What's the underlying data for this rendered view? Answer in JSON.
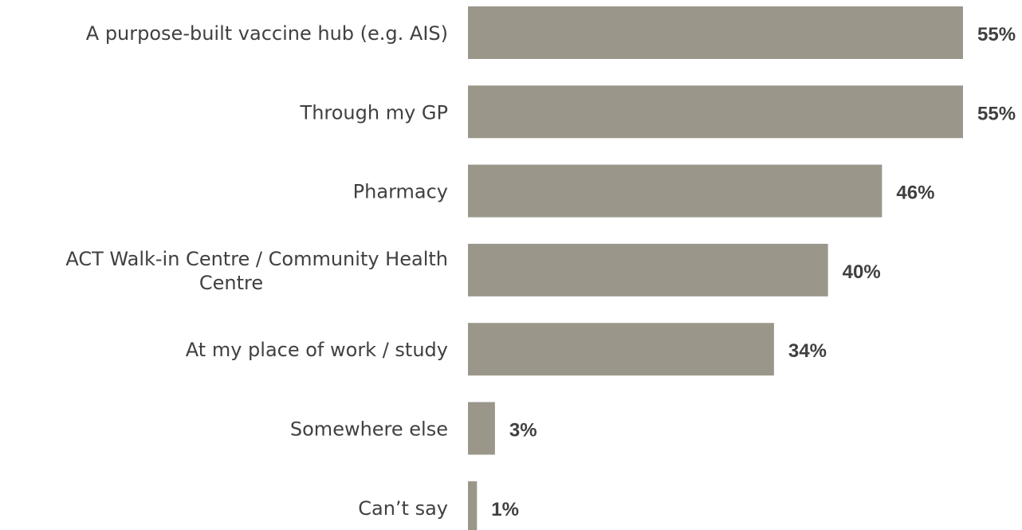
{
  "chart_data": {
    "type": "bar",
    "orientation": "horizontal",
    "title": "",
    "xlabel": "",
    "ylabel": "",
    "categories": [
      [
        "A purpose-built vaccine hub (e.g. AIS)"
      ],
      [
        "Through my GP"
      ],
      [
        "Pharmacy"
      ],
      [
        "ACT Walk-in Centre / Community Health",
        "Centre"
      ],
      [
        "At my place of work / study"
      ],
      [
        "Somewhere else"
      ],
      [
        "Can’t say"
      ]
    ],
    "values": [
      55,
      55,
      46,
      40,
      34,
      3,
      1
    ],
    "value_labels": [
      "55%",
      "55%",
      "46%",
      "40%",
      "34%",
      "3%",
      "1%"
    ],
    "xlim": [
      0,
      55
    ],
    "grid": false,
    "legend": "none",
    "bar_color": "#9a978a"
  }
}
